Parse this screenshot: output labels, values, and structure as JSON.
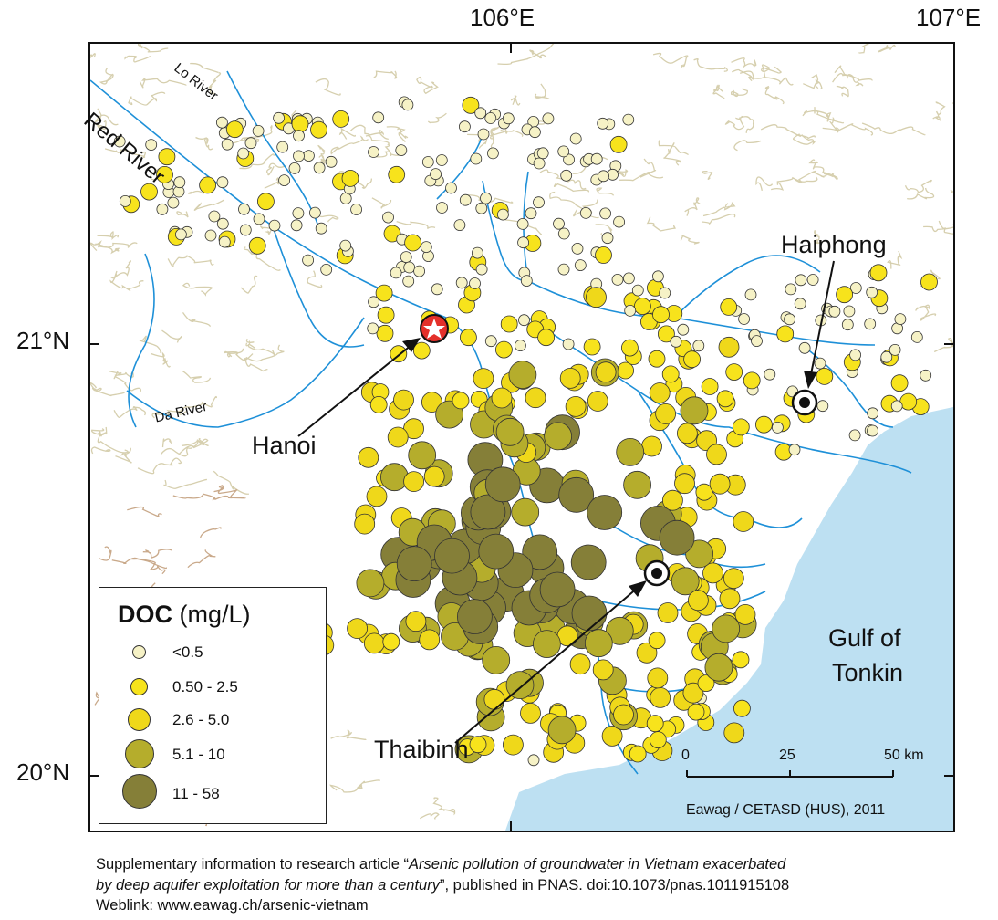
{
  "axes": {
    "lon_labels": [
      "106°E",
      "107°E"
    ],
    "lat_labels": [
      "21°N",
      "20°N"
    ]
  },
  "places": {
    "hanoi": "Hanoi",
    "haiphong": "Haiphong",
    "thaibinh": "Thaibinh",
    "gulf_line1": "Gulf of",
    "gulf_line2": "Tonkin"
  },
  "rivers": {
    "red": "Red River",
    "lo": "Lo River",
    "da": "Da River"
  },
  "legend": {
    "title_bold": "DOC",
    "title_unit": "(mg/L)",
    "classes": [
      {
        "label": "<0.5",
        "color": "#f6f2c6"
      },
      {
        "label": "0.50 - 2.5",
        "color": "#f7e31c"
      },
      {
        "label": "2.6 - 5.0",
        "color": "#efd81a"
      },
      {
        "label": "5.1 - 10",
        "color": "#b5ad2c"
      },
      {
        "label": "11 - 58",
        "color": "#857f38"
      }
    ]
  },
  "scale_bar": {
    "ticks": [
      "0",
      "25",
      "50 km"
    ]
  },
  "credit": "Eawag / CETASD (HUS), 2011",
  "footer": {
    "line1_prefix": "Supplementary information to research article “",
    "line1_title": "Arsenic pollution of groundwater in Vietnam exacerbated",
    "line2_title": "by deep aquifer exploitation for more than a century",
    "line2_suffix": "”, published in PNAS. doi:10.1073/pnas.1011915108",
    "line3": "Weblink: www.eawag.ch/arsenic-vietnam"
  },
  "colors": {
    "sea": "#bde0f2",
    "river": "#1e90d8",
    "terrain": "#d6cfae",
    "terrain_dark": "#c9a98a",
    "capital_marker": "#e4302a"
  }
}
